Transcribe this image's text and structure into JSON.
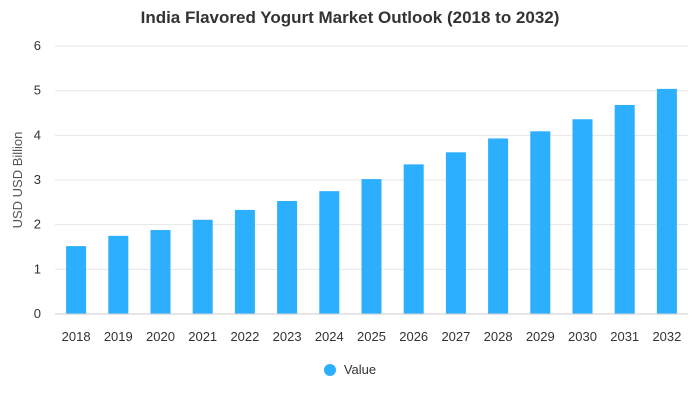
{
  "chart_data": {
    "type": "bar",
    "title": "India Flavored Yogurt Market Outlook (2018 to 2032)",
    "xlabel": "",
    "ylabel": "USD USD Billion",
    "categories": [
      "2018",
      "2019",
      "2020",
      "2021",
      "2022",
      "2023",
      "2024",
      "2025",
      "2026",
      "2027",
      "2028",
      "2029",
      "2030",
      "2031",
      "2032"
    ],
    "series": [
      {
        "name": "Value",
        "values": [
          1.52,
          1.75,
          1.88,
          2.11,
          2.33,
          2.53,
          2.75,
          3.02,
          3.35,
          3.62,
          3.93,
          4.09,
          4.36,
          4.68,
          5.04
        ]
      }
    ],
    "ylim": [
      0,
      6
    ],
    "yticks": [
      "0",
      "1",
      "2",
      "3",
      "4",
      "5",
      "6"
    ],
    "grid": true,
    "legend_position": "bottom",
    "bar_color": "#2caffe"
  }
}
